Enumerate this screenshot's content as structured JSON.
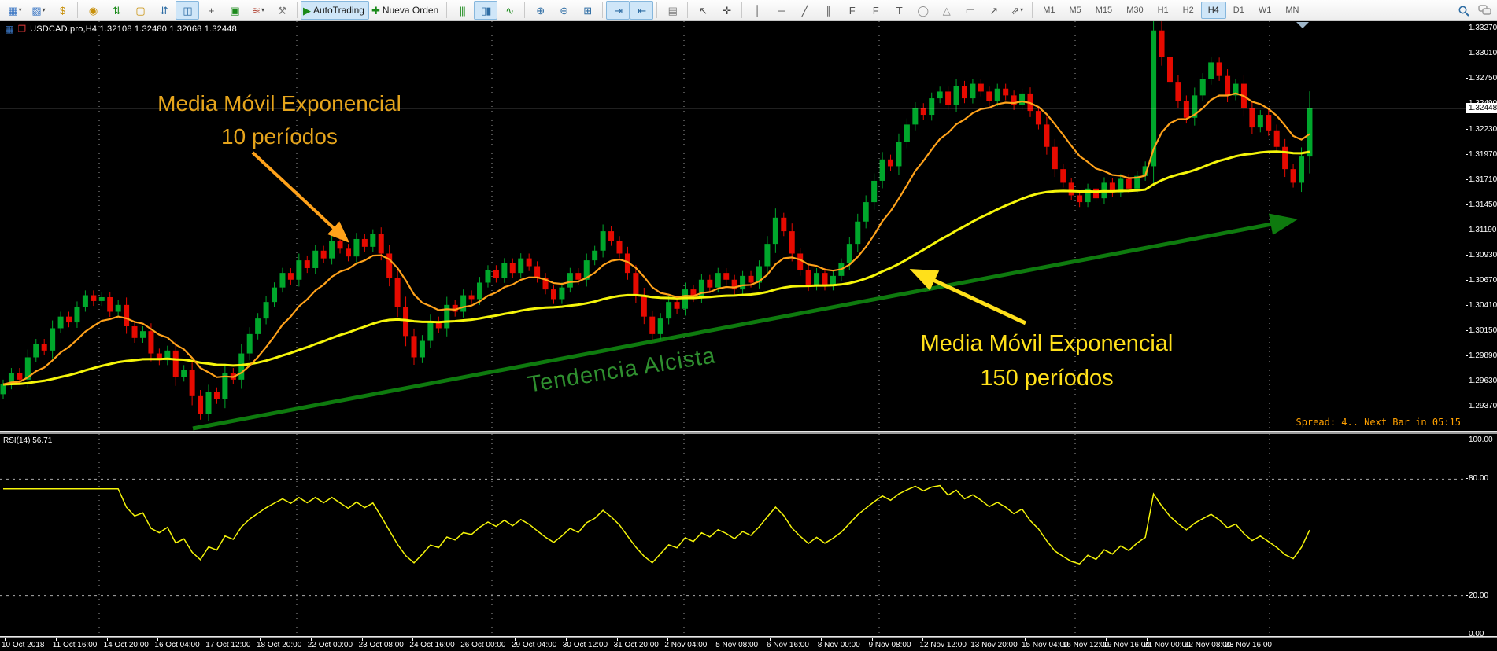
{
  "colors": {
    "bull": "#00a72c",
    "bear": "#e60a00",
    "ema_fast": "#ffa21a",
    "ema_slow": "#f5f50a",
    "trendline": "#0e7a0e",
    "annotation_orange": "#e5a41c",
    "annotation_yellow": "#ffe01a",
    "annotation_green": "#2f8f2f",
    "rsi_line": "#f5f50a",
    "spread_text": "#ffa000",
    "grid": "#bdbdbd",
    "current_price_line": "#ffffff",
    "toolbar_active": "#cfe6f8"
  },
  "toolbar": {
    "groups": [
      {
        "buttons": [
          {
            "name": "new-chart-button",
            "glyph": "▦",
            "color": "#3a76c4",
            "dropdown": true
          },
          {
            "name": "profiles-button",
            "glyph": "▧",
            "color": "#3a76c4",
            "dropdown": true
          },
          {
            "name": "symbols-button",
            "glyph": "$",
            "color": "#c8900a"
          }
        ]
      },
      {
        "buttons": [
          {
            "name": "quotes-button",
            "glyph": "◉",
            "color": "#c8900a"
          },
          {
            "name": "market-watch-button",
            "glyph": "⇅",
            "color": "#1a8a1a"
          },
          {
            "name": "data-folder-button",
            "glyph": "▢",
            "color": "#c8900a"
          },
          {
            "name": "depth-of-market-button",
            "glyph": "⇵",
            "color": "#2e6da4"
          },
          {
            "name": "sidebar-toggle-button",
            "glyph": "◫",
            "color": "#2e6da4",
            "active": true
          },
          {
            "name": "data-window-button",
            "glyph": "+",
            "color": "#555555"
          },
          {
            "name": "navigator-button",
            "glyph": "▣",
            "color": "#1a8a1a"
          },
          {
            "name": "indicators-button",
            "glyph": "≋",
            "color": "#b04030",
            "dropdown": true
          },
          {
            "name": "tools-button",
            "glyph": "⚒",
            "color": "#777777"
          }
        ]
      },
      {
        "buttons": [
          {
            "name": "auto-trading-button",
            "glyph": "▶",
            "color": "#1a8a1a",
            "label": "AutoTrading",
            "active": true
          },
          {
            "name": "nueva-orden-button",
            "glyph": "✚",
            "color": "#1a8a1a",
            "label": "Nueva Orden"
          }
        ]
      },
      {
        "buttons": [
          {
            "name": "bar-chart-button",
            "glyph": "|||",
            "color": "#1a8a1a"
          },
          {
            "name": "candlestick-chart-button",
            "glyph": "▯▮",
            "color": "#2e6da4",
            "active": true
          },
          {
            "name": "line-chart-button",
            "glyph": "∿",
            "color": "#1a8a1a"
          }
        ]
      },
      {
        "buttons": [
          {
            "name": "zoom-in-button",
            "glyph": "⊕",
            "color": "#2e6da4"
          },
          {
            "name": "zoom-out-button",
            "glyph": "⊖",
            "color": "#2e6da4"
          },
          {
            "name": "tile-windows-button",
            "glyph": "⊞",
            "color": "#2e6da4"
          }
        ]
      },
      {
        "buttons": [
          {
            "name": "auto-scroll-button",
            "glyph": "⇥",
            "color": "#2e6da4",
            "active": true
          },
          {
            "name": "chart-shift-button",
            "glyph": "⇤",
            "color": "#2e6da4",
            "active": true
          }
        ]
      },
      {
        "buttons": [
          {
            "name": "templates-button",
            "glyph": "▤",
            "color": "#7a7a7a"
          }
        ]
      },
      {
        "buttons": [
          {
            "name": "cursor-button",
            "glyph": "↖",
            "color": "#444444"
          },
          {
            "name": "crosshair-button",
            "glyph": "✛",
            "color": "#444444"
          }
        ]
      },
      {
        "buttons": [
          {
            "name": "vertical-line-button",
            "glyph": "│",
            "color": "#555555"
          },
          {
            "name": "horizontal-line-button",
            "glyph": "─",
            "color": "#555555"
          },
          {
            "name": "trendline-button",
            "glyph": "╱",
            "color": "#555555"
          },
          {
            "name": "channel-button",
            "glyph": "∥",
            "color": "#555555"
          },
          {
            "name": "fibo-retracement-button",
            "glyph": "F",
            "color": "#555555"
          },
          {
            "name": "fibo-fan-button",
            "glyph": "F",
            "color": "#555555"
          },
          {
            "name": "text-button",
            "glyph": "T",
            "color": "#555555"
          },
          {
            "name": "ellipse-button",
            "glyph": "◯",
            "color": "#888888"
          },
          {
            "name": "triangle-button",
            "glyph": "△",
            "color": "#888888"
          },
          {
            "name": "rectangle-button",
            "glyph": "▭",
            "color": "#888888"
          },
          {
            "name": "arrow-object-button",
            "glyph": "↗",
            "color": "#555555"
          },
          {
            "name": "arrows-more-button",
            "glyph": "⇗",
            "color": "#555555",
            "dropdown": true
          }
        ]
      }
    ],
    "timeframes": [
      {
        "label": "M1"
      },
      {
        "label": "M5"
      },
      {
        "label": "M15"
      },
      {
        "label": "M30"
      },
      {
        "label": "H1"
      },
      {
        "label": "H2"
      },
      {
        "label": "H4",
        "active": true
      },
      {
        "label": "D1"
      },
      {
        "label": "W1"
      },
      {
        "label": "MN"
      }
    ]
  },
  "chart": {
    "title": "USDCAD.pro,H4  1.32108 1.32480 1.32068 1.32448",
    "current_price": "1.32448",
    "spread_text": "Spread: 4..  Next Bar in 05:15",
    "price_axis_labels": [
      "1.33270",
      "1.33010",
      "1.32750",
      "1.32490",
      "1.32230",
      "1.31970",
      "1.31710",
      "1.31450",
      "1.31190",
      "1.30930",
      "1.30670",
      "1.30410",
      "1.30150",
      "1.29890",
      "1.29630",
      "1.29370"
    ],
    "time_axis_labels": [
      "10 Oct 2018",
      "11 Oct 16:00",
      "14 Oct 20:00",
      "16 Oct 04:00",
      "17 Oct 12:00",
      "18 Oct 20:00",
      "22 Oct 00:00",
      "23 Oct 08:00",
      "24 Oct 16:00",
      "26 Oct 00:00",
      "29 Oct 04:00",
      "30 Oct 12:00",
      "31 Oct 20:00",
      "2 Nov 04:00",
      "5 Nov 08:00",
      "6 Nov 16:00",
      "8 Nov 00:00",
      "9 Nov 08:00",
      "12 Nov 12:00",
      "13 Nov 20:00",
      "15 Nov 04:00",
      "16 Nov 12:00",
      "19 Nov 16:00",
      "21 Nov 00:00",
      "22 Nov 08:00",
      "23 Nov 16:00"
    ]
  },
  "annotations": {
    "ema10_line1": "Media Móvil Exponencial",
    "ema10_line2": "10 períodos",
    "ema150_line1": "Media Móvil Exponencial",
    "ema150_line2": "150 períodos",
    "trend_text": "Tendencia Alcista"
  },
  "rsi": {
    "label": "RSI(14) 56.71",
    "period": 14,
    "value": "56.71",
    "axis_labels": [
      {
        "text": "100.00",
        "value": 100
      },
      {
        "text": "80.00",
        "value": 80
      },
      {
        "text": "20.00",
        "value": 20
      },
      {
        "text": "0.00",
        "value": 0
      }
    ],
    "levels": [
      80,
      20
    ]
  },
  "chart_data": {
    "type": "candlestick",
    "symbol": "USDCAD.pro",
    "timeframe": "H4",
    "ohlc_note": "closes series; open derived from previous close",
    "first_open": 1.295,
    "closes": [
      1.296,
      1.2972,
      1.2965,
      1.2988,
      1.3002,
      1.2995,
      1.3018,
      1.303,
      1.3024,
      1.304,
      1.3052,
      1.3046,
      1.305,
      1.3035,
      1.3042,
      1.302,
      1.3008,
      1.3015,
      1.2992,
      1.2985,
      1.2995,
      1.2968,
      1.2975,
      1.2948,
      1.293,
      1.2952,
      1.2945,
      1.2972,
      1.2965,
      1.2992,
      1.3012,
      1.3028,
      1.3045,
      1.306,
      1.3075,
      1.3068,
      1.3088,
      1.308,
      1.3098,
      1.309,
      1.3108,
      1.31,
      1.3092,
      1.311,
      1.3102,
      1.3115,
      1.3095,
      1.307,
      1.304,
      1.301,
      1.2988,
      1.3005,
      1.3025,
      1.3018,
      1.3042,
      1.3035,
      1.3052,
      1.3048,
      1.3065,
      1.3078,
      1.307,
      1.3085,
      1.3075,
      1.309,
      1.3082,
      1.307,
      1.3058,
      1.3048,
      1.306,
      1.3075,
      1.3068,
      1.3088,
      1.3098,
      1.3118,
      1.3108,
      1.3095,
      1.3075,
      1.3052,
      1.303,
      1.3012,
      1.3028,
      1.3045,
      1.3038,
      1.3058,
      1.305,
      1.3068,
      1.306,
      1.3075,
      1.3068,
      1.3058,
      1.3072,
      1.3065,
      1.3082,
      1.3105,
      1.3132,
      1.3118,
      1.3095,
      1.3078,
      1.3062,
      1.3075,
      1.3062,
      1.3072,
      1.3085,
      1.3105,
      1.3128,
      1.3148,
      1.317,
      1.3192,
      1.3185,
      1.321,
      1.3228,
      1.3245,
      1.3238,
      1.3255,
      1.3262,
      1.3248,
      1.3268,
      1.3255,
      1.327,
      1.3262,
      1.3252,
      1.3265,
      1.3258,
      1.3248,
      1.326,
      1.3242,
      1.3228,
      1.3205,
      1.3182,
      1.3168,
      1.3155,
      1.3148,
      1.3162,
      1.3152,
      1.3168,
      1.3158,
      1.3172,
      1.3162,
      1.3175,
      1.3185,
      1.3325,
      1.3298,
      1.3272,
      1.3252,
      1.3235,
      1.3258,
      1.3275,
      1.3292,
      1.3278,
      1.3258,
      1.327,
      1.3245,
      1.3225,
      1.3238,
      1.3222,
      1.3205,
      1.3182,
      1.3168,
      1.3195,
      1.32448
    ],
    "overlays": [
      {
        "name": "EMA fast",
        "label_periods": "10",
        "color": "#ffa21a"
      },
      {
        "name": "EMA slow",
        "label_periods": "150",
        "color": "#f5f50a"
      }
    ],
    "trendline": {
      "from_price": 1.2917,
      "to_price": 1.3135,
      "direction": "up"
    }
  }
}
